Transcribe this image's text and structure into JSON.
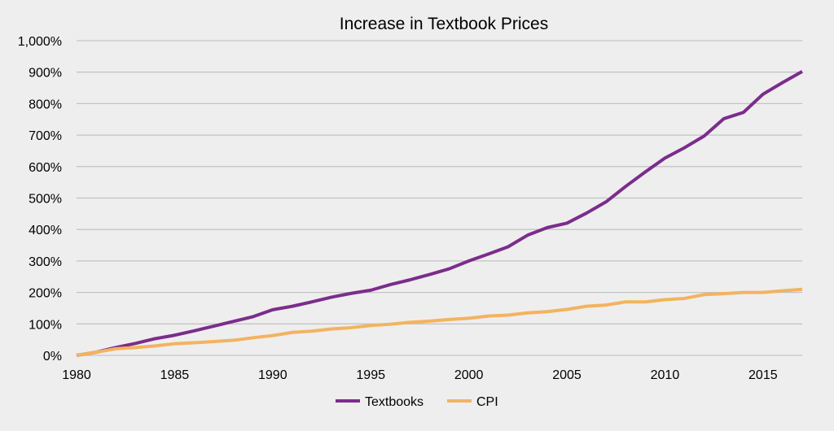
{
  "chart_data": {
    "type": "line",
    "title": "Increase in Textbook Prices",
    "xlabel": "",
    "ylabel": "",
    "x": [
      1980,
      1981,
      1982,
      1983,
      1984,
      1985,
      1986,
      1987,
      1988,
      1989,
      1990,
      1991,
      1992,
      1993,
      1994,
      1995,
      1996,
      1997,
      1998,
      1999,
      2000,
      2001,
      2002,
      2003,
      2004,
      2005,
      2006,
      2007,
      2008,
      2009,
      2010,
      2011,
      2012,
      2013,
      2014,
      2015,
      2016,
      2017
    ],
    "xlim": [
      1980,
      2017
    ],
    "ylim": [
      0,
      1000
    ],
    "x_ticks": [
      1980,
      1985,
      1990,
      1995,
      2000,
      2005,
      2010,
      2015
    ],
    "x_tick_labels": [
      "1980",
      "1985",
      "1990",
      "1995",
      "2000",
      "2005",
      "2010",
      "2015"
    ],
    "y_ticks": [
      0,
      100,
      200,
      300,
      400,
      500,
      600,
      700,
      800,
      900,
      1000
    ],
    "y_tick_labels": [
      "0%",
      "100%",
      "200%",
      "300%",
      "400%",
      "500%",
      "600%",
      "700%",
      "800%",
      "900%",
      "1,000%"
    ],
    "grid": "horizontal",
    "legend_position": "bottom",
    "series": [
      {
        "name": "Textbooks",
        "color": "#7b2d8b",
        "values": [
          0,
          10,
          25,
          38,
          53,
          64,
          78,
          93,
          108,
          123,
          145,
          156,
          170,
          185,
          197,
          207,
          225,
          240,
          257,
          275,
          300,
          322,
          345,
          382,
          406,
          420,
          452,
          488,
          537,
          583,
          627,
          660,
          697,
          752,
          772,
          830,
          867,
          902
        ]
      },
      {
        "name": "CPI",
        "color": "#f3b35e",
        "values": [
          0,
          10,
          21,
          25,
          30,
          37,
          40,
          44,
          48,
          56,
          63,
          73,
          77,
          84,
          88,
          95,
          99,
          105,
          109,
          114,
          118,
          125,
          128,
          135,
          139,
          146,
          156,
          160,
          170,
          170,
          177,
          181,
          193,
          196,
          200,
          200,
          205,
          210
        ]
      }
    ]
  }
}
